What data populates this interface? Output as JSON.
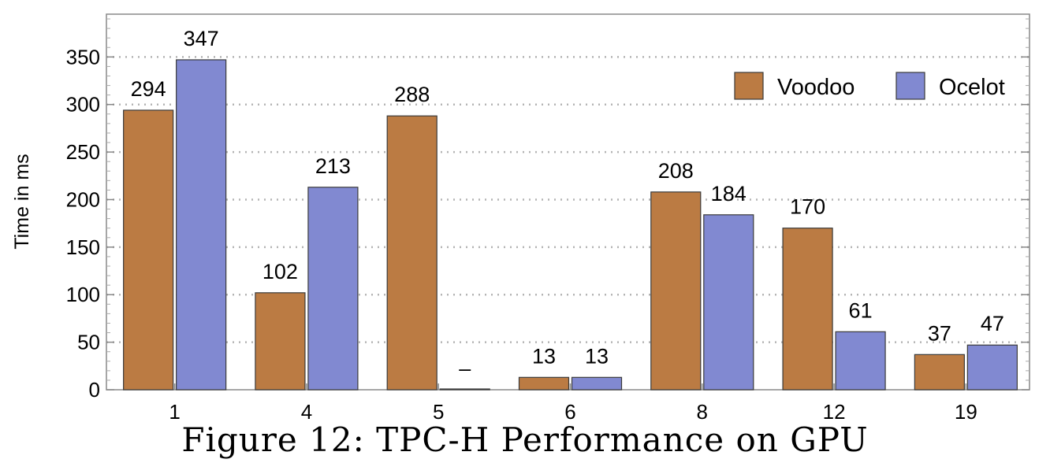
{
  "chart_data": {
    "type": "bar",
    "categories": [
      "1",
      "4",
      "5",
      "6",
      "8",
      "12",
      "19"
    ],
    "series": [
      {
        "name": "Voodoo",
        "color": "#bb7b43",
        "values": [
          294,
          102,
          288,
          13,
          208,
          170,
          37
        ],
        "labels": [
          "294",
          "102",
          "288",
          "13",
          "208",
          "170",
          "37"
        ]
      },
      {
        "name": "Ocelot",
        "color": "#8189d1",
        "values": [
          347,
          213,
          0,
          13,
          184,
          61,
          47
        ],
        "labels": [
          "347",
          "213",
          "–",
          "13",
          "184",
          "61",
          "47"
        ]
      }
    ],
    "ylabel": "Time in ms",
    "ylim": [
      0,
      395
    ],
    "yticks": [
      0,
      50,
      100,
      150,
      200,
      250,
      300,
      350
    ],
    "grid": true,
    "legend_position": "top-right"
  },
  "caption": "Figure 12:  TPC-H Performance on GPU"
}
